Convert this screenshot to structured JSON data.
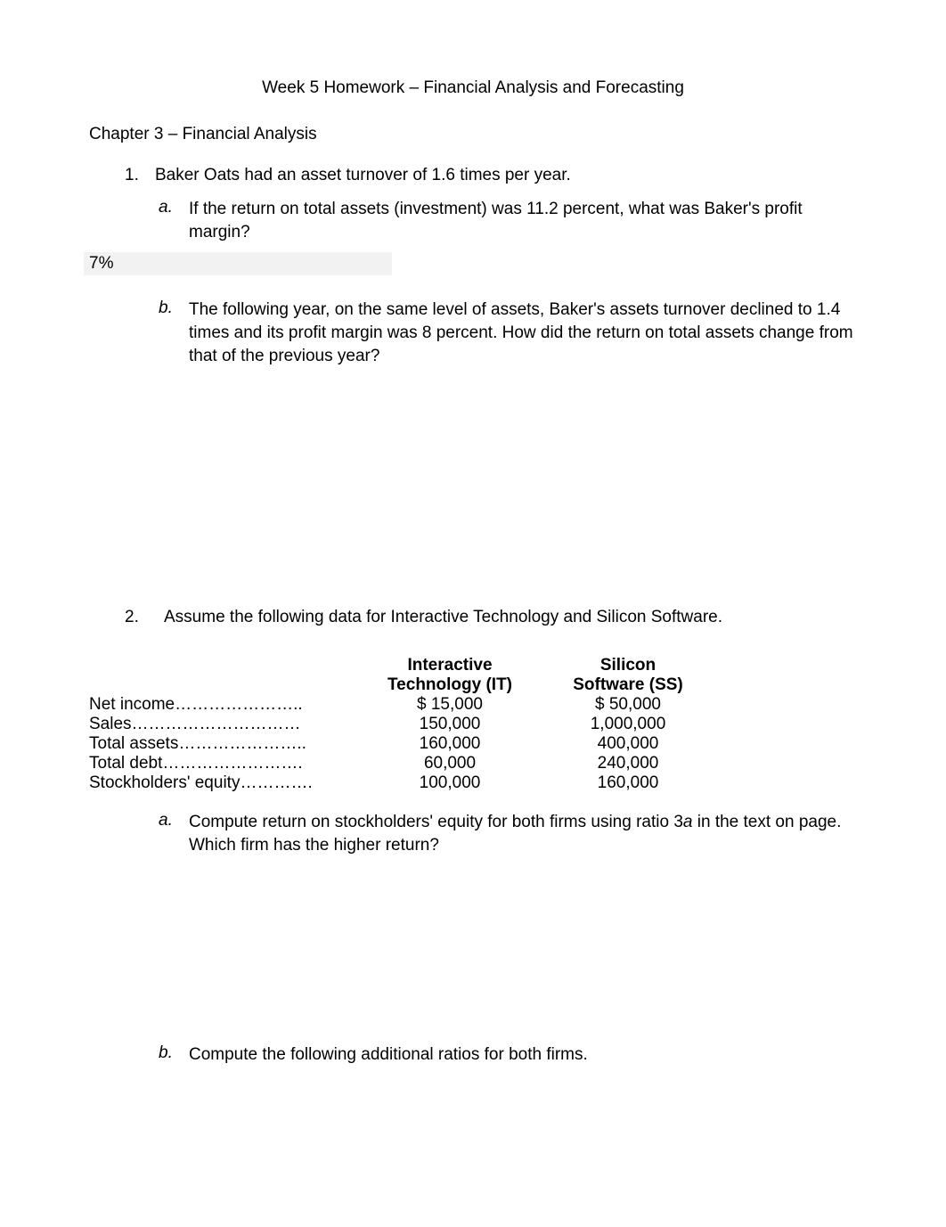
{
  "title": "Week 5 Homework – Financial Analysis and Forecasting",
  "chapter": "Chapter 3 – Financial Analysis",
  "q1": {
    "number": "1.",
    "text": "Baker Oats had an asset turnover of 1.6 times per year.",
    "a": {
      "letter": "a.",
      "text": "If the return on total assets (investment) was 11.2 percent, what was Baker's profit margin?"
    },
    "answer_a": "7%",
    "b": {
      "letter": "b.",
      "text": "The following year, on the same level of assets, Baker's assets turnover declined to 1.4 times and its profit margin was 8 percent. How did the return on total assets change from that of the previous year?"
    }
  },
  "q2": {
    "number": "2.",
    "text": "Assume the following data for Interactive Technology and Silicon Software.",
    "table": {
      "col1_header_line1": "Interactive",
      "col1_header_line2": "Technology (IT)",
      "col2_header_line1": "Silicon",
      "col2_header_line2": "Software (SS)",
      "rows": [
        {
          "label": "Net income…………………..",
          "it": "$ 15,000",
          "ss": "$ 50,000"
        },
        {
          "label": "Sales…………………………",
          "it": "150,000",
          "ss": "1,000,000"
        },
        {
          "label": "Total assets…………………..",
          "it": "160,000",
          "ss": "400,000"
        },
        {
          "label": "Total debt…………………….",
          "it": "60,000",
          "ss": "240,000"
        },
        {
          "label": "Stockholders' equity………….",
          "it": "100,000",
          "ss": "160,000"
        }
      ]
    },
    "a": {
      "letter": "a.",
      "text_before_italic": "Compute return on stockholders' equity for both firms using ratio 3",
      "italic": "a",
      "text_after_italic": " in the text on page. Which firm has the higher return?"
    },
    "b": {
      "letter": "b.",
      "text": "Compute the following additional ratios for both firms."
    }
  }
}
